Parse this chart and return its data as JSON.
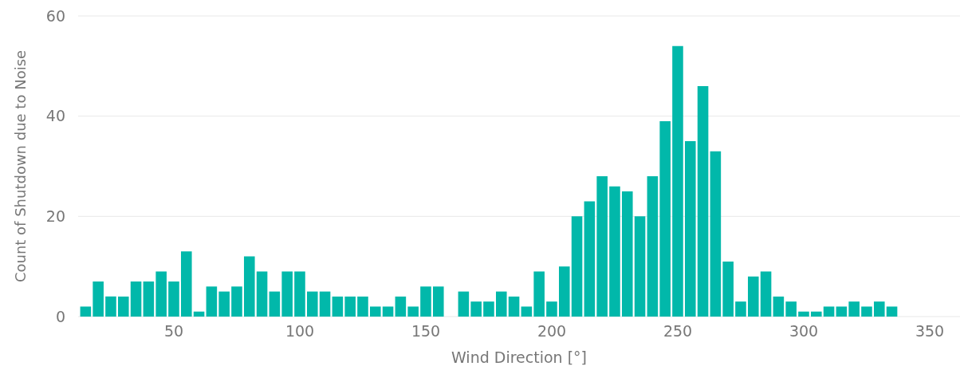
{
  "chart_data": {
    "type": "bar",
    "xlabel": "Wind Direction [°]",
    "ylabel": "Count of Shutdown due to Noise",
    "x": [
      15,
      20,
      25,
      30,
      35,
      40,
      45,
      50,
      55,
      60,
      65,
      70,
      75,
      80,
      85,
      90,
      95,
      100,
      105,
      110,
      115,
      120,
      125,
      130,
      135,
      140,
      145,
      150,
      155,
      160,
      165,
      170,
      175,
      180,
      185,
      190,
      195,
      200,
      205,
      210,
      215,
      220,
      225,
      230,
      235,
      240,
      245,
      250,
      255,
      260,
      265,
      270,
      275,
      280,
      285,
      290,
      295,
      300,
      305,
      310,
      315,
      320,
      325,
      330,
      335
    ],
    "values": [
      2,
      7,
      4,
      4,
      7,
      7,
      9,
      7,
      13,
      1,
      6,
      5,
      6,
      12,
      9,
      5,
      9,
      9,
      5,
      5,
      4,
      4,
      4,
      2,
      2,
      4,
      2,
      6,
      6,
      null,
      5,
      3,
      3,
      5,
      4,
      2,
      9,
      3,
      10,
      20,
      23,
      28,
      26,
      25,
      20,
      28,
      39,
      54,
      35,
      46,
      33,
      11,
      3,
      8,
      9,
      4,
      3,
      1,
      1,
      2,
      2,
      3,
      2,
      3,
      2
    ],
    "color": "#01b8aa",
    "xlim": [
      12,
      362
    ],
    "xticks": [
      50,
      100,
      150,
      200,
      250,
      300,
      350
    ],
    "ylim": [
      0,
      60
    ],
    "yticks": [
      0,
      20,
      40,
      60
    ],
    "grid": "y"
  }
}
